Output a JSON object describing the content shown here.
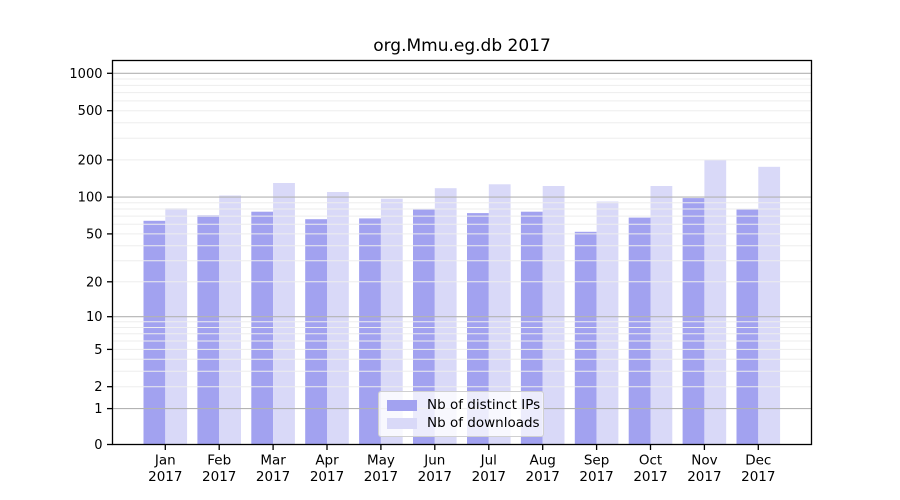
{
  "chart_data": {
    "type": "bar",
    "title": "org.Mmu.eg.db 2017",
    "categories": [
      "Jan",
      "Feb",
      "Mar",
      "Apr",
      "May",
      "Jun",
      "Jul",
      "Aug",
      "Sep",
      "Oct",
      "Nov",
      "Dec"
    ],
    "category_year": "2017",
    "series": [
      {
        "name": "Nb of distinct IPs",
        "color": "#a2a2f0",
        "values": [
          64,
          71,
          76,
          66,
          67,
          79,
          74,
          76,
          52,
          68,
          98,
          79
        ]
      },
      {
        "name": "Nb of downloads",
        "color": "#d9d9f8",
        "values": [
          81,
          103,
          130,
          110,
          97,
          118,
          127,
          123,
          92,
          123,
          200,
          176
        ]
      }
    ],
    "yscale": "log1p",
    "yticks": [
      0,
      1,
      2,
      5,
      10,
      20,
      50,
      100,
      200,
      500,
      1000
    ],
    "ylim": [
      0,
      1000
    ],
    "grid": "on",
    "grid_minor_values": [
      2,
      3,
      4,
      5,
      6,
      7,
      8,
      9,
      20,
      30,
      40,
      50,
      60,
      70,
      80,
      90,
      200,
      300,
      400,
      500,
      600,
      700,
      800,
      900
    ],
    "grid_major_values": [
      1,
      10,
      100,
      1000
    ],
    "legend_position": "bottom-center",
    "colors": {
      "axis": "#000000",
      "major_grid": "#b3b3b3",
      "minor_grid": "#ededed",
      "background": "#ffffff"
    }
  }
}
